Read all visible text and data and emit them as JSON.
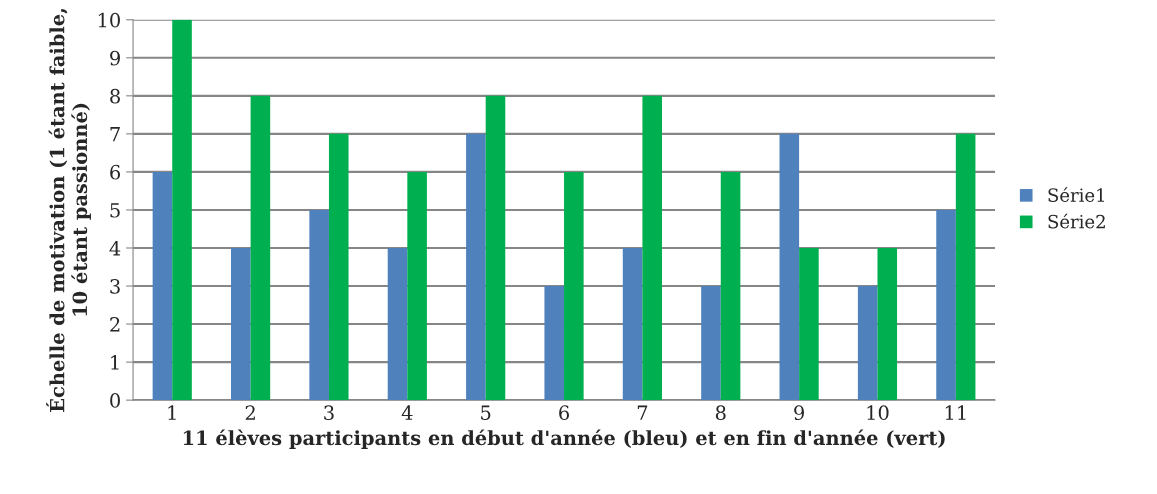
{
  "chart_data": {
    "type": "bar",
    "xlabel": "11 élèves participants en début d'année (bleu) et en fin d'année (vert)",
    "ylabel": "Échelle de motivation (1 étant faible, 10 étant passionné)",
    "categories": [
      "1",
      "2",
      "3",
      "4",
      "5",
      "6",
      "7",
      "8",
      "9",
      "10",
      "11"
    ],
    "series": [
      {
        "name": "Série1",
        "color": "#4f81bd",
        "values": [
          6,
          4,
          5,
          4,
          7,
          3,
          4,
          3,
          7,
          3,
          5
        ]
      },
      {
        "name": "Série2",
        "color": "#00b050",
        "values": [
          10,
          8,
          7,
          6,
          8,
          6,
          8,
          6,
          4,
          4,
          7
        ]
      }
    ],
    "ylim": [
      0,
      10
    ],
    "yticks": [
      0,
      1,
      2,
      3,
      4,
      5,
      6,
      7,
      8,
      9,
      10
    ],
    "grid": "y",
    "legend": "right"
  }
}
